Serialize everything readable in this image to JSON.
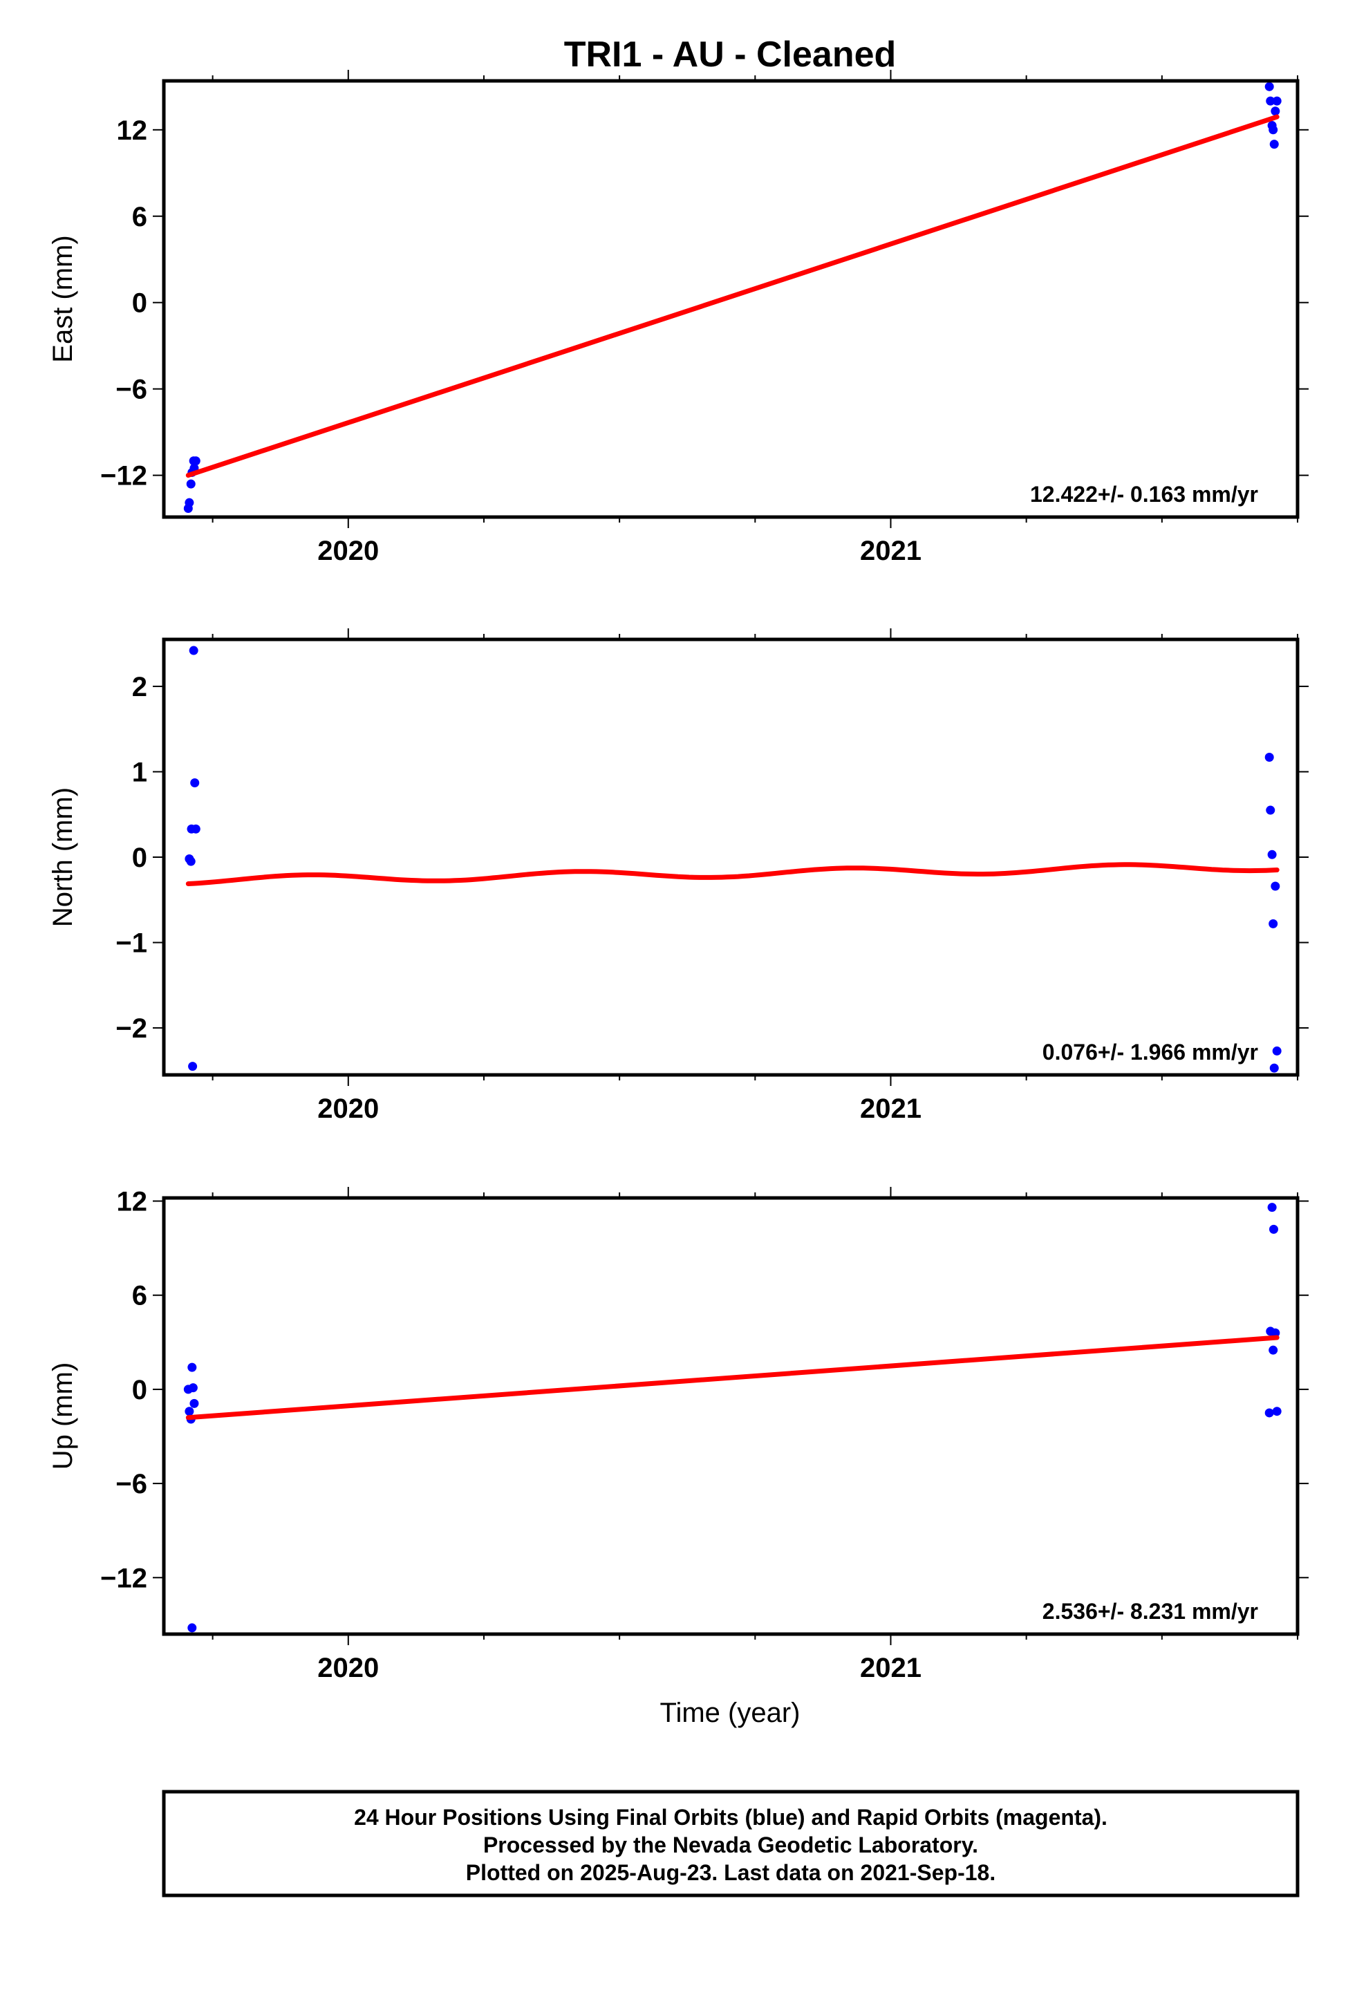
{
  "title": "TRI1  - AU - Cleaned",
  "xlabel": "Time (year)",
  "footer": {
    "lines": [
      "24 Hour Positions Using Final Orbits (blue) and Rapid Orbits (magenta).",
      "Processed by the Nevada Geodetic Laboratory.",
      "Plotted on 2025-Aug-23. Last data on 2021-Sep-18."
    ]
  },
  "colors": {
    "points": "#0000ff",
    "fit": "#ff0000",
    "axes": "#000000"
  },
  "chart_data": [
    {
      "type": "scatter",
      "name": "east",
      "ylabel": "East (mm)",
      "rate_label": "12.422+/- 0.163 mm/yr",
      "xlim": [
        2019.66,
        2021.75
      ],
      "ylim": [
        -14.9,
        15.4
      ],
      "yticks": [
        -12,
        -6,
        0,
        6,
        12
      ],
      "xticks": [
        2020,
        2021
      ],
      "points": [
        [
          2019.705,
          -14.3
        ],
        [
          2019.707,
          -13.9
        ],
        [
          2019.71,
          -12.6
        ],
        [
          2019.712,
          -11.8
        ],
        [
          2019.715,
          -11.0
        ],
        [
          2019.719,
          -11.0
        ],
        [
          2019.716,
          -11.5
        ],
        [
          2021.698,
          15.0
        ],
        [
          2021.7,
          14.0
        ],
        [
          2021.703,
          12.3
        ],
        [
          2021.705,
          12.0
        ],
        [
          2021.707,
          11.0
        ],
        [
          2021.709,
          13.3
        ],
        [
          2021.712,
          14.0
        ]
      ],
      "fit": [
        [
          2019.705,
          -12.0
        ],
        [
          2021.712,
          12.9
        ]
      ]
    },
    {
      "type": "scatter",
      "name": "north",
      "ylabel": "North (mm)",
      "rate_label": "0.076+/- 1.966 mm/yr",
      "xlim": [
        2019.66,
        2021.75
      ],
      "ylim": [
        -2.55,
        2.55
      ],
      "yticks": [
        -2,
        -1,
        0,
        1,
        2
      ],
      "xticks": [
        2020,
        2021
      ],
      "points": [
        [
          2019.707,
          -0.02
        ],
        [
          2019.71,
          -0.05
        ],
        [
          2019.711,
          0.33
        ],
        [
          2019.713,
          -2.45
        ],
        [
          2019.715,
          2.42
        ],
        [
          2019.717,
          0.87
        ],
        [
          2019.719,
          0.33
        ],
        [
          2021.698,
          1.17
        ],
        [
          2021.7,
          0.55
        ],
        [
          2021.703,
          0.03
        ],
        [
          2021.705,
          -0.78
        ],
        [
          2021.707,
          -2.47
        ],
        [
          2021.709,
          -0.34
        ],
        [
          2021.712,
          -2.27
        ]
      ],
      "fit_type": "wave",
      "fit_params": {
        "x0": 2019.705,
        "x1": 2021.712,
        "y_start": -0.27,
        "y_end": -0.11,
        "amp": 0.045
      }
    },
    {
      "type": "scatter",
      "name": "up",
      "ylabel": "Up (mm)",
      "rate_label": "2.536+/- 8.231 mm/yr",
      "xlim": [
        2019.66,
        2021.75
      ],
      "ylim": [
        -15.6,
        12.2
      ],
      "yticks": [
        -12,
        -6,
        0,
        6,
        12
      ],
      "xticks": [
        2020,
        2021
      ],
      "points": [
        [
          2019.705,
          0.0
        ],
        [
          2019.707,
          -1.4
        ],
        [
          2019.71,
          -1.9
        ],
        [
          2019.712,
          1.4
        ],
        [
          2019.714,
          0.1
        ],
        [
          2019.716,
          -0.9
        ],
        [
          2019.712,
          -15.2
        ],
        [
          2021.698,
          -1.5
        ],
        [
          2021.7,
          3.7
        ],
        [
          2021.703,
          11.6
        ],
        [
          2021.705,
          2.5
        ],
        [
          2021.706,
          10.2
        ],
        [
          2021.709,
          3.6
        ],
        [
          2021.712,
          -1.4
        ]
      ],
      "fit": [
        [
          2019.705,
          -1.8
        ],
        [
          2021.712,
          3.3
        ]
      ]
    }
  ]
}
